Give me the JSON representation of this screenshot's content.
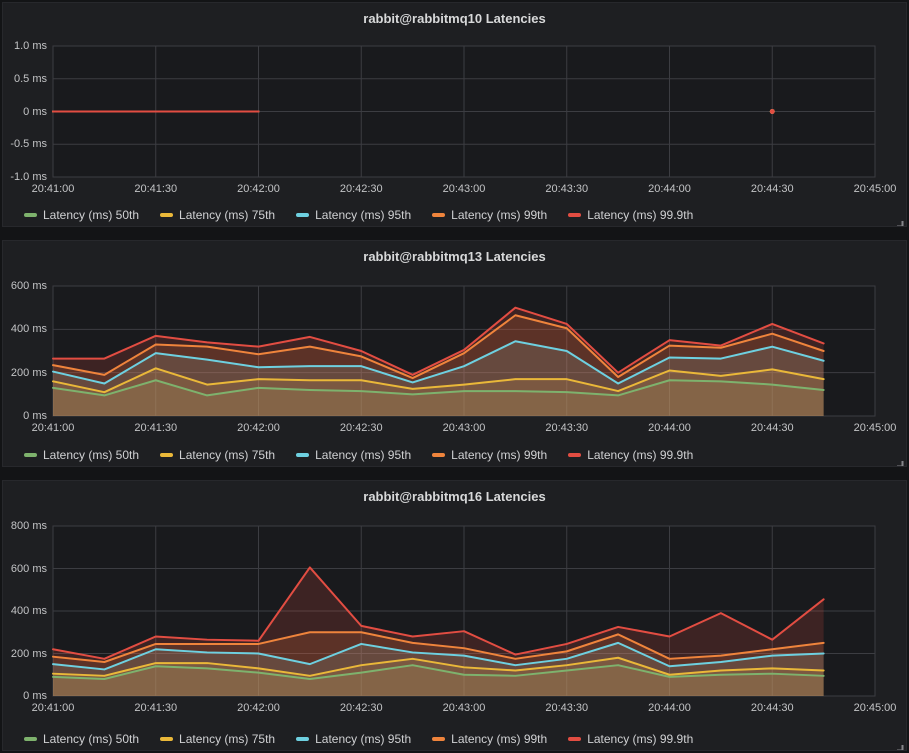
{
  "accent_colors": {
    "p50": "#7EB26D",
    "p75": "#EAB839",
    "p95": "#6ED0E0",
    "p99": "#EF843C",
    "p999": "#E24D42"
  },
  "chart_data": [
    {
      "type": "line",
      "title": "rabbit@rabbitmq10 Latencies",
      "unit": "ms",
      "ylim": [
        -1.0,
        1.0
      ],
      "y_ticks": [
        "1.0 ms",
        "0.5 ms",
        "0 ms",
        "-0.5 ms",
        "-1.0 ms"
      ],
      "y_tick_values": [
        1.0,
        0.5,
        0,
        -0.5,
        -1.0
      ],
      "x_ticks": [
        "20:41:00",
        "20:41:30",
        "20:42:00",
        "20:42:30",
        "20:43:00",
        "20:43:30",
        "20:44:00",
        "20:44:30",
        "20:45:00"
      ],
      "x_span_seconds": 240,
      "point_interval_seconds": 15,
      "x_points": [
        "20:41:00",
        "20:41:15",
        "20:41:30",
        "20:41:45",
        "20:42:00",
        "20:42:15",
        "20:42:30",
        "20:42:45",
        "20:43:00",
        "20:43:15",
        "20:43:30",
        "20:43:45",
        "20:44:00",
        "20:44:15",
        "20:44:30",
        "20:44:45"
      ],
      "grid": true,
      "legend_position": "bottom-left",
      "series": [
        {
          "name": "Latency (ms) 50th",
          "color": "#7EB26D",
          "values": [
            0,
            0,
            0,
            0,
            0,
            null,
            null,
            null,
            null,
            null,
            null,
            null,
            null,
            null,
            0,
            null
          ]
        },
        {
          "name": "Latency (ms) 75th",
          "color": "#EAB839",
          "values": [
            0,
            0,
            0,
            0,
            0,
            null,
            null,
            null,
            null,
            null,
            null,
            null,
            null,
            null,
            0,
            null
          ]
        },
        {
          "name": "Latency (ms) 95th",
          "color": "#6ED0E0",
          "values": [
            0,
            0,
            0,
            0,
            0,
            null,
            null,
            null,
            null,
            null,
            null,
            null,
            null,
            null,
            0,
            null
          ]
        },
        {
          "name": "Latency (ms) 99th",
          "color": "#EF843C",
          "values": [
            0,
            0,
            0,
            0,
            0,
            null,
            null,
            null,
            null,
            null,
            null,
            null,
            null,
            null,
            0,
            null
          ]
        },
        {
          "name": "Latency (ms) 99.9th",
          "color": "#E24D42",
          "values": [
            0,
            0,
            0,
            0,
            0,
            null,
            null,
            null,
            null,
            null,
            null,
            null,
            null,
            null,
            0,
            null
          ]
        }
      ]
    },
    {
      "type": "line",
      "title": "rabbit@rabbitmq13 Latencies",
      "unit": "ms",
      "ylim": [
        0,
        600
      ],
      "y_ticks": [
        "600 ms",
        "400 ms",
        "200 ms",
        "0 ms"
      ],
      "y_tick_values": [
        600,
        400,
        200,
        0
      ],
      "x_ticks": [
        "20:41:00",
        "20:41:30",
        "20:42:00",
        "20:42:30",
        "20:43:00",
        "20:43:30",
        "20:44:00",
        "20:44:30",
        "20:45:00"
      ],
      "x_span_seconds": 240,
      "point_interval_seconds": 15,
      "x_points": [
        "20:41:00",
        "20:41:15",
        "20:41:30",
        "20:41:45",
        "20:42:00",
        "20:42:15",
        "20:42:30",
        "20:42:45",
        "20:43:00",
        "20:43:15",
        "20:43:30",
        "20:43:45",
        "20:44:00",
        "20:44:15",
        "20:44:30",
        "20:44:45"
      ],
      "grid": true,
      "legend_position": "bottom-left",
      "series": [
        {
          "name": "Latency (ms) 50th",
          "color": "#7EB26D",
          "values": [
            130,
            95,
            165,
            95,
            130,
            120,
            115,
            100,
            115,
            115,
            110,
            95,
            165,
            160,
            145,
            120
          ]
        },
        {
          "name": "Latency (ms) 75th",
          "color": "#EAB839",
          "values": [
            160,
            110,
            220,
            145,
            170,
            165,
            165,
            125,
            145,
            170,
            170,
            115,
            210,
            185,
            215,
            170
          ]
        },
        {
          "name": "Latency (ms) 95th",
          "color": "#6ED0E0",
          "values": [
            205,
            150,
            290,
            260,
            225,
            230,
            230,
            155,
            230,
            345,
            300,
            150,
            270,
            265,
            320,
            255
          ]
        },
        {
          "name": "Latency (ms) 99th",
          "color": "#EF843C",
          "values": [
            235,
            190,
            330,
            320,
            285,
            320,
            275,
            175,
            290,
            465,
            405,
            180,
            325,
            315,
            380,
            300
          ]
        },
        {
          "name": "Latency (ms) 99.9th",
          "color": "#E24D42",
          "values": [
            265,
            265,
            370,
            340,
            320,
            365,
            300,
            190,
            305,
            500,
            425,
            200,
            350,
            325,
            425,
            335
          ]
        }
      ]
    },
    {
      "type": "line",
      "title": "rabbit@rabbitmq16 Latencies",
      "unit": "ms",
      "ylim": [
        0,
        800
      ],
      "y_ticks": [
        "800 ms",
        "600 ms",
        "400 ms",
        "200 ms",
        "0 ms"
      ],
      "y_tick_values": [
        800,
        600,
        400,
        200,
        0
      ],
      "x_ticks": [
        "20:41:00",
        "20:41:30",
        "20:42:00",
        "20:42:30",
        "20:43:00",
        "20:43:30",
        "20:44:00",
        "20:44:30",
        "20:45:00"
      ],
      "x_span_seconds": 240,
      "point_interval_seconds": 15,
      "x_points": [
        "20:41:00",
        "20:41:15",
        "20:41:30",
        "20:41:45",
        "20:42:00",
        "20:42:15",
        "20:42:30",
        "20:42:45",
        "20:43:00",
        "20:43:15",
        "20:43:30",
        "20:43:45",
        "20:44:00",
        "20:44:15",
        "20:44:30",
        "20:44:45"
      ],
      "grid": true,
      "legend_position": "bottom-left",
      "series": [
        {
          "name": "Latency (ms) 50th",
          "color": "#7EB26D",
          "values": [
            90,
            80,
            140,
            130,
            110,
            80,
            110,
            145,
            100,
            95,
            120,
            145,
            90,
            100,
            105,
            95
          ]
        },
        {
          "name": "Latency (ms) 75th",
          "color": "#EAB839",
          "values": [
            105,
            95,
            155,
            155,
            130,
            95,
            145,
            175,
            135,
            120,
            145,
            180,
            100,
            120,
            130,
            120
          ]
        },
        {
          "name": "Latency (ms) 95th",
          "color": "#6ED0E0",
          "values": [
            150,
            125,
            220,
            205,
            200,
            150,
            245,
            205,
            190,
            145,
            175,
            250,
            140,
            160,
            190,
            200
          ]
        },
        {
          "name": "Latency (ms) 99th",
          "color": "#EF843C",
          "values": [
            185,
            160,
            245,
            245,
            245,
            300,
            300,
            250,
            225,
            175,
            210,
            290,
            175,
            190,
            220,
            250
          ]
        },
        {
          "name": "Latency (ms) 99.9th",
          "color": "#E24D42",
          "values": [
            220,
            175,
            280,
            265,
            260,
            605,
            330,
            280,
            305,
            195,
            245,
            325,
            280,
            390,
            265,
            455
          ]
        }
      ]
    }
  ]
}
